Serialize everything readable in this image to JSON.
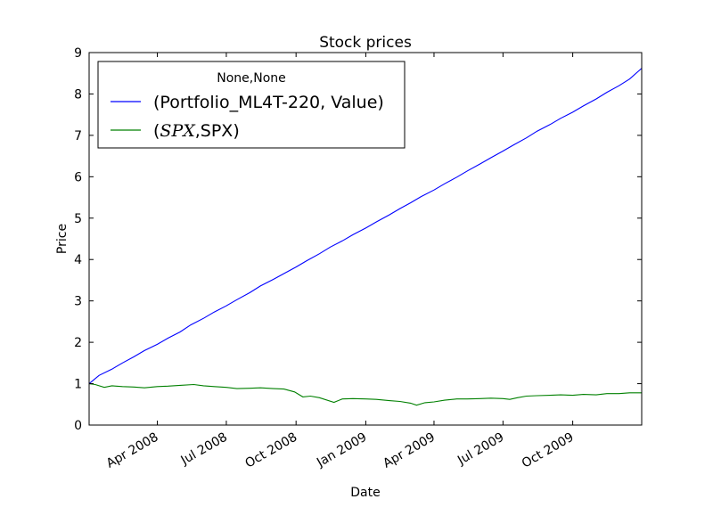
{
  "chart_data": {
    "type": "line",
    "title": "Stock prices",
    "xlabel": "Date",
    "ylabel": "Price",
    "xlim": [
      "2008-01-02",
      "2009-12-31"
    ],
    "ylim": [
      0,
      9
    ],
    "y_ticks": [
      "0",
      "1",
      "2",
      "3",
      "4",
      "5",
      "6",
      "7",
      "8",
      "9"
    ],
    "x_ticks": [
      {
        "date": "2008-04-01",
        "label": "Apr 2008"
      },
      {
        "date": "2008-07-01",
        "label": "Jul 2008"
      },
      {
        "date": "2008-10-01",
        "label": "Oct 2008"
      },
      {
        "date": "2009-01-01",
        "label": "Jan 2009"
      },
      {
        "date": "2009-04-01",
        "label": "Apr 2009"
      },
      {
        "date": "2009-07-01",
        "label": "Jul 2009"
      },
      {
        "date": "2009-10-01",
        "label": "Oct 2009"
      }
    ],
    "grid": false,
    "legend": {
      "placement": "top-left",
      "title": "None,None",
      "entries": [
        {
          "prefix": "(Portfolio_ML4T-220, Value)",
          "italic": "",
          "suffix": ""
        },
        {
          "prefix": "(",
          "italic": "SPX",
          "suffix": ",SPX)"
        }
      ]
    },
    "series": [
      {
        "name": "(Portfolio_ML4T-220, Value)",
        "color": "#0000ff",
        "x": [
          "2008-01-02",
          "2008-01-15",
          "2008-02-01",
          "2008-02-15",
          "2008-03-01",
          "2008-03-15",
          "2008-04-01",
          "2008-04-15",
          "2008-05-01",
          "2008-05-15",
          "2008-06-01",
          "2008-06-15",
          "2008-07-01",
          "2008-07-15",
          "2008-08-01",
          "2008-08-15",
          "2008-09-01",
          "2008-09-15",
          "2008-10-01",
          "2008-10-15",
          "2008-11-01",
          "2008-11-15",
          "2008-12-01",
          "2008-12-15",
          "2009-01-01",
          "2009-01-15",
          "2009-02-01",
          "2009-02-15",
          "2009-03-01",
          "2009-03-15",
          "2009-04-01",
          "2009-04-15",
          "2009-05-01",
          "2009-05-15",
          "2009-06-01",
          "2009-06-15",
          "2009-07-01",
          "2009-07-15",
          "2009-08-01",
          "2009-08-15",
          "2009-09-01",
          "2009-09-15",
          "2009-10-01",
          "2009-10-15",
          "2009-11-01",
          "2009-11-15",
          "2009-12-01",
          "2009-12-15",
          "2009-12-31"
        ],
        "values": [
          1.0,
          1.2,
          1.35,
          1.5,
          1.65,
          1.8,
          1.95,
          2.1,
          2.25,
          2.42,
          2.58,
          2.73,
          2.88,
          3.03,
          3.2,
          3.36,
          3.52,
          3.66,
          3.82,
          3.97,
          4.14,
          4.3,
          4.45,
          4.6,
          4.76,
          4.91,
          5.08,
          5.23,
          5.37,
          5.52,
          5.68,
          5.83,
          5.99,
          6.14,
          6.31,
          6.46,
          6.62,
          6.77,
          6.94,
          7.1,
          7.26,
          7.41,
          7.56,
          7.71,
          7.88,
          8.04,
          8.2,
          8.36,
          8.62
        ]
      },
      {
        "name": "(SPX,SPX)",
        "color": "#008000",
        "x": [
          "2008-01-02",
          "2008-01-10",
          "2008-01-22",
          "2008-02-01",
          "2008-02-15",
          "2008-03-01",
          "2008-03-15",
          "2008-04-01",
          "2008-04-15",
          "2008-05-01",
          "2008-05-19",
          "2008-06-01",
          "2008-06-15",
          "2008-07-01",
          "2008-07-15",
          "2008-08-01",
          "2008-08-15",
          "2008-09-01",
          "2008-09-15",
          "2008-09-29",
          "2008-10-10",
          "2008-10-20",
          "2008-11-01",
          "2008-11-20",
          "2008-12-01",
          "2008-12-15",
          "2009-01-01",
          "2009-01-15",
          "2009-02-01",
          "2009-02-15",
          "2009-03-01",
          "2009-03-09",
          "2009-03-20",
          "2009-04-01",
          "2009-04-15",
          "2009-05-01",
          "2009-05-15",
          "2009-06-01",
          "2009-06-15",
          "2009-07-01",
          "2009-07-10",
          "2009-07-20",
          "2009-08-01",
          "2009-08-15",
          "2009-09-01",
          "2009-09-15",
          "2009-10-01",
          "2009-10-15",
          "2009-11-01",
          "2009-11-15",
          "2009-12-01",
          "2009-12-15",
          "2009-12-31"
        ],
        "values": [
          1.0,
          0.98,
          0.91,
          0.95,
          0.93,
          0.92,
          0.9,
          0.93,
          0.94,
          0.96,
          0.98,
          0.95,
          0.93,
          0.91,
          0.88,
          0.89,
          0.9,
          0.88,
          0.87,
          0.8,
          0.68,
          0.7,
          0.66,
          0.55,
          0.63,
          0.64,
          0.63,
          0.62,
          0.59,
          0.57,
          0.53,
          0.48,
          0.54,
          0.56,
          0.6,
          0.63,
          0.63,
          0.64,
          0.65,
          0.64,
          0.62,
          0.66,
          0.7,
          0.71,
          0.72,
          0.73,
          0.72,
          0.74,
          0.73,
          0.76,
          0.76,
          0.78,
          0.78
        ]
      }
    ]
  }
}
